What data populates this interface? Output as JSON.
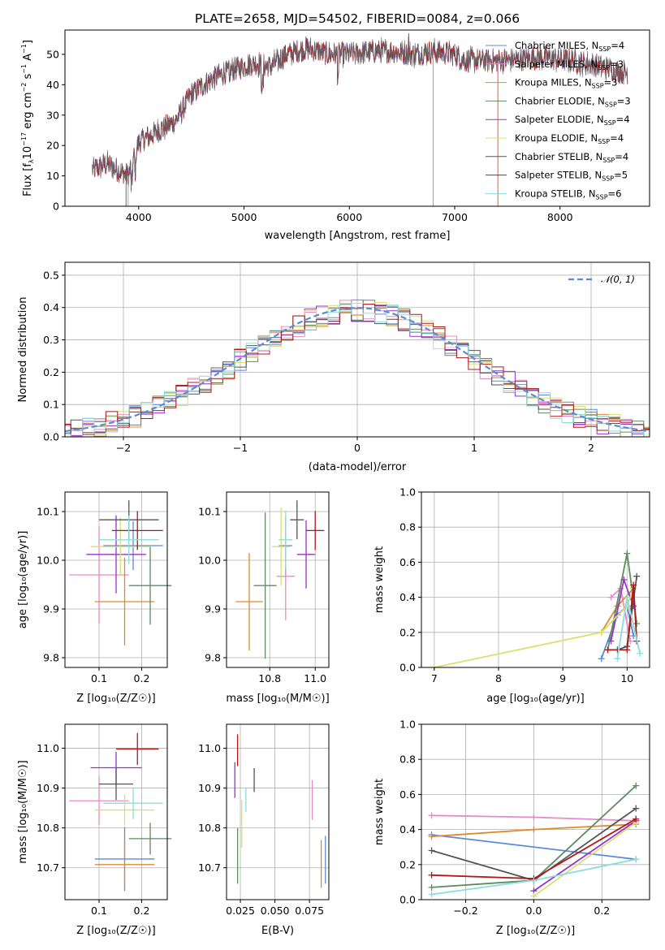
{
  "colors": [
    "#5b8bd4",
    "#e68bc8",
    "#e08a2b",
    "#5d8c5d",
    "#9933cc",
    "#d8e070",
    "#555555",
    "#b01818",
    "#88dde0"
  ],
  "chart_data": [
    {
      "id": "spectrum",
      "type": "line",
      "title": "PLATE=2658, MJD=54502, FIBERID=0084, z=0.066",
      "xlabel": "wavelength [Angstrom, rest frame]",
      "ylabel_parts": [
        "Flux [f",
        "λ",
        "10",
        "−17",
        " erg cm",
        "−2",
        " s",
        "−1",
        " A",
        "−1",
        "]"
      ],
      "xlim": [
        3300,
        8850
      ],
      "ylim": [
        0,
        58
      ],
      "xticks": [
        "4000",
        "5000",
        "6000",
        "7000",
        "8000"
      ],
      "yticks": [
        "0",
        "10",
        "20",
        "30",
        "40",
        "50"
      ],
      "continuum": [
        [
          3560,
          12
        ],
        [
          3700,
          14
        ],
        [
          3900,
          10
        ],
        [
          4000,
          21
        ],
        [
          4200,
          25
        ],
        [
          4350,
          28
        ],
        [
          4500,
          37
        ],
        [
          4700,
          42
        ],
        [
          4900,
          45
        ],
        [
          5100,
          47
        ],
        [
          5250,
          46
        ],
        [
          5400,
          50
        ],
        [
          5600,
          52
        ],
        [
          5800,
          50
        ],
        [
          6000,
          50
        ],
        [
          6200,
          51
        ],
        [
          6400,
          51
        ],
        [
          6600,
          50
        ],
        [
          6800,
          51
        ],
        [
          7000,
          50
        ],
        [
          7100,
          48
        ],
        [
          7300,
          48
        ],
        [
          7500,
          48
        ],
        [
          7800,
          49
        ],
        [
          8100,
          48
        ],
        [
          8400,
          46
        ],
        [
          8600,
          44
        ]
      ],
      "series": [
        {
          "label": "Chabrier MILES, N",
          "sub": "SSP",
          "value": "=4"
        },
        {
          "label": "Salpeter MILES, N",
          "sub": "SSP",
          "value": "=3"
        },
        {
          "label": "Kroupa MILES, N",
          "sub": "SSP",
          "value": "=3"
        },
        {
          "label": "Chabrier ELODIE, N",
          "sub": "SSP",
          "value": "=3"
        },
        {
          "label": "Salpeter ELODIE, N",
          "sub": "SSP",
          "value": "=4"
        },
        {
          "label": "Kroupa ELODIE, N",
          "sub": "SSP",
          "value": "=4"
        },
        {
          "label": "Chabrier STELIB, N",
          "sub": "SSP",
          "value": "=4"
        },
        {
          "label": "Salpeter STELIB, N",
          "sub": "SSP",
          "value": "=5"
        },
        {
          "label": "Kroupa STELIB, N",
          "sub": "SSP",
          "value": "=6"
        }
      ]
    },
    {
      "id": "residuals",
      "type": "histogram",
      "xlabel": "(data-model)/error",
      "ylabel": "Normed distribution",
      "xlim": [
        -2.5,
        2.5
      ],
      "ylim": [
        0,
        0.54
      ],
      "xticks": [
        {
          "v": -2,
          "t": "−2"
        },
        {
          "v": -1,
          "t": "−1"
        },
        {
          "v": 0,
          "t": "0"
        },
        {
          "v": 1,
          "t": "1"
        },
        {
          "v": 2,
          "t": "2"
        }
      ],
      "yticks": [
        {
          "v": 0,
          "t": "0.0"
        },
        {
          "v": 0.1,
          "t": "0.1"
        },
        {
          "v": 0.2,
          "t": "0.2"
        },
        {
          "v": 0.3,
          "t": "0.3"
        },
        {
          "v": 0.4,
          "t": "0.4"
        },
        {
          "v": 0.5,
          "t": "0.5"
        }
      ],
      "bin_width": 0.1,
      "legend": "𝒩(0, 1)",
      "gaussian": {
        "mu": 0,
        "sigma": 1
      }
    },
    {
      "id": "age-vs-Z",
      "type": "errorbar",
      "xlabel": "Z [log₁₀(Z/Z☉)]",
      "ylabel": "age  [log₁₀(age/yr)]",
      "xlim": [
        0.02,
        0.26
      ],
      "ylim": [
        9.78,
        10.14
      ],
      "xticks": [
        {
          "v": 0.1,
          "t": "0.1"
        },
        {
          "v": 0.2,
          "t": "0.2"
        }
      ],
      "yticks": [
        {
          "v": 9.8,
          "t": "9.8"
        },
        {
          "v": 9.9,
          "t": "9.9"
        },
        {
          "v": 10.0,
          "t": "10.0"
        },
        {
          "v": 10.1,
          "t": "10.1"
        }
      ],
      "points": [
        {
          "x": 0.18,
          "y": 10.03,
          "xerr": 0.07,
          "yerr": 0.05,
          "c": 0
        },
        {
          "x": 0.1,
          "y": 9.97,
          "xerr": 0.07,
          "yerr": 0.1,
          "c": 1
        },
        {
          "x": 0.16,
          "y": 9.915,
          "xerr": 0.07,
          "yerr": 0.09,
          "c": 2
        },
        {
          "x": 0.22,
          "y": 9.948,
          "xerr": 0.05,
          "yerr": 0.08,
          "c": 3
        },
        {
          "x": 0.14,
          "y": 10.012,
          "xerr": 0.07,
          "yerr": 0.08,
          "c": 4
        },
        {
          "x": 0.15,
          "y": 10.028,
          "xerr": 0.07,
          "yerr": 0.06,
          "c": 5
        },
        {
          "x": 0.17,
          "y": 10.083,
          "xerr": 0.07,
          "yerr": 0.04,
          "c": 6
        },
        {
          "x": 0.19,
          "y": 10.061,
          "xerr": 0.06,
          "yerr": 0.04,
          "c": 7
        },
        {
          "x": 0.17,
          "y": 10.042,
          "xerr": 0.07,
          "yerr": 0.05,
          "c": 8
        }
      ]
    },
    {
      "id": "age-vs-mass",
      "type": "errorbar",
      "xlabel": "mass [log₁₀(M/M☉)]",
      "ylabel": "",
      "xlim": [
        10.61,
        11.06
      ],
      "ylim": [
        9.78,
        10.14
      ],
      "xticks": [
        {
          "v": 10.8,
          "t": "10.8"
        },
        {
          "v": 11.0,
          "t": "11.0"
        }
      ],
      "yticks": [
        {
          "v": 9.8,
          "t": "9.8"
        },
        {
          "v": 9.9,
          "t": "9.9"
        },
        {
          "v": 10.0,
          "t": "10.0"
        },
        {
          "v": 10.1,
          "t": "10.1"
        }
      ],
      "points": [
        {
          "x": 10.87,
          "y": 10.03,
          "xerr": 0.03,
          "yerr": 0.06,
          "c": 0
        },
        {
          "x": 10.87,
          "y": 9.967,
          "xerr": 0.04,
          "yerr": 0.09,
          "c": 1
        },
        {
          "x": 10.71,
          "y": 9.915,
          "xerr": 0.06,
          "yerr": 0.1,
          "c": 2
        },
        {
          "x": 10.78,
          "y": 9.948,
          "xerr": 0.05,
          "yerr": 0.15,
          "c": 3
        },
        {
          "x": 10.96,
          "y": 10.012,
          "xerr": 0.04,
          "yerr": 0.07,
          "c": 4
        },
        {
          "x": 10.85,
          "y": 10.028,
          "xerr": 0.04,
          "yerr": 0.08,
          "c": 5
        },
        {
          "x": 10.92,
          "y": 10.083,
          "xerr": 0.03,
          "yerr": 0.04,
          "c": 6
        },
        {
          "x": 11.0,
          "y": 10.061,
          "xerr": 0.04,
          "yerr": 0.04,
          "c": 7
        },
        {
          "x": 10.87,
          "y": 10.042,
          "xerr": 0.03,
          "yerr": 0.06,
          "c": 8
        }
      ]
    },
    {
      "id": "massweight-vs-age",
      "type": "line",
      "xlabel": "age  [log₁₀(age/yr)]",
      "ylabel": "mass weight",
      "xlim": [
        6.8,
        10.35
      ],
      "ylim": [
        0,
        1.0
      ],
      "xticks": [
        {
          "v": 7,
          "t": "7"
        },
        {
          "v": 8,
          "t": "8"
        },
        {
          "v": 9,
          "t": "9"
        },
        {
          "v": 10,
          "t": "10"
        }
      ],
      "yticks": [
        {
          "v": 0,
          "t": "0.0"
        },
        {
          "v": 0.2,
          "t": "0.2"
        },
        {
          "v": 0.4,
          "t": "0.4"
        },
        {
          "v": 0.6,
          "t": "0.6"
        },
        {
          "v": 0.8,
          "t": "0.8"
        },
        {
          "v": 1.0,
          "t": "1.0"
        }
      ],
      "series": [
        {
          "c": 0,
          "pts": [
            [
              9.6,
              0.05
            ],
            [
              9.85,
              0.3
            ],
            [
              10.0,
              0.35
            ],
            [
              10.1,
              0.18
            ]
          ]
        },
        {
          "c": 1,
          "pts": [
            [
              9.75,
              0.4
            ],
            [
              9.9,
              0.45
            ],
            [
              10.05,
              0.15
            ]
          ]
        },
        {
          "c": 2,
          "pts": [
            [
              9.6,
              0.2
            ],
            [
              9.85,
              0.35
            ],
            [
              10.1,
              0.45
            ]
          ]
        },
        {
          "c": 3,
          "pts": [
            [
              9.7,
              0.1
            ],
            [
              10.0,
              0.65
            ],
            [
              10.15,
              0.25
            ]
          ]
        },
        {
          "c": 4,
          "pts": [
            [
              9.75,
              0.15
            ],
            [
              9.95,
              0.5
            ],
            [
              10.1,
              0.35
            ]
          ]
        },
        {
          "c": 5,
          "pts": [
            [
              7.0,
              0.0
            ],
            [
              9.6,
              0.2
            ],
            [
              10.0,
              0.35
            ],
            [
              10.1,
              0.45
            ]
          ]
        },
        {
          "c": 6,
          "pts": [
            [
              9.85,
              0.1
            ],
            [
              10.0,
              0.12
            ],
            [
              10.15,
              0.52
            ]
          ]
        },
        {
          "c": 7,
          "pts": [
            [
              9.7,
              0.1
            ],
            [
              10.0,
              0.1
            ],
            [
              10.1,
              0.47
            ],
            [
              10.15,
              0.15
            ]
          ]
        },
        {
          "c": 8,
          "pts": [
            [
              9.85,
              0.05
            ],
            [
              10.0,
              0.4
            ],
            [
              10.2,
              0.08
            ]
          ]
        }
      ]
    },
    {
      "id": "mass-vs-Z",
      "type": "errorbar",
      "xlabel": "Z [log₁₀(Z/Z☉)]",
      "ylabel": "mass [log₁₀(M/M☉)]",
      "xlim": [
        0.02,
        0.26
      ],
      "ylim": [
        10.62,
        11.06
      ],
      "xticks": [
        {
          "v": 0.1,
          "t": "0.1"
        },
        {
          "v": 0.2,
          "t": "0.2"
        }
      ],
      "yticks": [
        {
          "v": 10.7,
          "t": "10.7"
        },
        {
          "v": 10.8,
          "t": "10.8"
        },
        {
          "v": 10.9,
          "t": "10.9"
        },
        {
          "v": 11.0,
          "t": "11.0"
        }
      ],
      "points": [
        {
          "x": 0.16,
          "y": 10.722,
          "xerr": 0.07,
          "yerr": 0.08,
          "c": 0
        },
        {
          "x": 0.1,
          "y": 10.868,
          "xerr": 0.07,
          "yerr": 0.06,
          "c": 1
        },
        {
          "x": 0.16,
          "y": 10.708,
          "xerr": 0.07,
          "yerr": 0.06,
          "c": 2
        },
        {
          "x": 0.22,
          "y": 10.773,
          "xerr": 0.05,
          "yerr": 0.04,
          "c": 3
        },
        {
          "x": 0.14,
          "y": 10.951,
          "xerr": 0.06,
          "yerr": 0.04,
          "c": 4
        },
        {
          "x": 0.16,
          "y": 10.845,
          "xerr": 0.07,
          "yerr": 0.04,
          "c": 5
        },
        {
          "x": 0.14,
          "y": 10.91,
          "xerr": 0.04,
          "yerr": 0.04,
          "c": 6
        },
        {
          "x": 0.19,
          "y": 10.998,
          "xerr": 0.05,
          "yerr": 0.04,
          "c": 7
        },
        {
          "x": 0.18,
          "y": 10.862,
          "xerr": 0.07,
          "yerr": 0.04,
          "c": 8
        }
      ]
    },
    {
      "id": "mass-vs-EBV",
      "type": "errorbar",
      "xlabel": "E(B-V)",
      "ylabel": "",
      "xlim": [
        0.015,
        0.089
      ],
      "ylim": [
        10.62,
        11.06
      ],
      "xticks": [
        {
          "v": 0.025,
          "t": "0.025"
        },
        {
          "v": 0.05,
          "t": "0.050"
        },
        {
          "v": 0.075,
          "t": "0.075"
        }
      ],
      "yticks": [
        {
          "v": 10.7,
          "t": "10.7"
        },
        {
          "v": 10.8,
          "t": "10.8"
        },
        {
          "v": 10.9,
          "t": "10.9"
        },
        {
          "v": 11.0,
          "t": "11.0"
        }
      ],
      "points": [
        {
          "x": 0.0865,
          "y": 10.72,
          "xerr": 0,
          "yerr": 0.06,
          "c": 0
        },
        {
          "x": 0.077,
          "y": 10.87,
          "xerr": 0,
          "yerr": 0.05,
          "c": 1
        },
        {
          "x": 0.0835,
          "y": 10.71,
          "xerr": 0,
          "yerr": 0.06,
          "c": 2
        },
        {
          "x": 0.023,
          "y": 10.73,
          "xerr": 0,
          "yerr": 0.07,
          "c": 3
        },
        {
          "x": 0.021,
          "y": 10.92,
          "xerr": 0,
          "yerr": 0.045,
          "c": 4
        },
        {
          "x": 0.026,
          "y": 10.81,
          "xerr": 0,
          "yerr": 0.06,
          "c": 5
        },
        {
          "x": 0.035,
          "y": 10.92,
          "xerr": 0,
          "yerr": 0.03,
          "c": 6
        },
        {
          "x": 0.023,
          "y": 10.995,
          "xerr": 0,
          "yerr": 0.04,
          "c": 7
        },
        {
          "x": 0.029,
          "y": 10.87,
          "xerr": 0,
          "yerr": 0.03,
          "c": 8
        }
      ]
    },
    {
      "id": "massweight-vs-Z",
      "type": "line",
      "xlabel": "Z [log₁₀(Z/Z☉)]",
      "ylabel": "mass weight",
      "xlim": [
        -0.33,
        0.34
      ],
      "ylim": [
        0,
        1.0
      ],
      "xticks": [
        {
          "v": -0.2,
          "t": "−0.2"
        },
        {
          "v": 0,
          "t": "0.0"
        },
        {
          "v": 0.2,
          "t": "0.2"
        }
      ],
      "yticks": [
        {
          "v": 0,
          "t": "0.0"
        },
        {
          "v": 0.2,
          "t": "0.2"
        },
        {
          "v": 0.4,
          "t": "0.4"
        },
        {
          "v": 0.6,
          "t": "0.6"
        },
        {
          "v": 0.8,
          "t": "0.8"
        },
        {
          "v": 1.0,
          "t": "1.0"
        }
      ],
      "series": [
        {
          "c": 0,
          "pts": [
            [
              -0.3,
              0.37
            ],
            [
              0.3,
              0.23
            ]
          ]
        },
        {
          "c": 1,
          "pts": [
            [
              -0.3,
              0.48
            ],
            [
              0.0,
              0.47
            ],
            [
              0.3,
              0.45
            ]
          ]
        },
        {
          "c": 2,
          "pts": [
            [
              -0.3,
              0.36
            ],
            [
              0.0,
              0.4
            ],
            [
              0.3,
              0.43
            ]
          ]
        },
        {
          "c": 3,
          "pts": [
            [
              -0.3,
              0.07
            ],
            [
              0.0,
              0.11
            ],
            [
              0.3,
              0.65
            ]
          ]
        },
        {
          "c": 4,
          "pts": [
            [
              0.0,
              0.05
            ],
            [
              0.3,
              0.45
            ]
          ]
        },
        {
          "c": 5,
          "pts": [
            [
              0.0,
              0.02
            ],
            [
              0.3,
              0.44
            ]
          ]
        },
        {
          "c": 6,
          "pts": [
            [
              -0.3,
              0.28
            ],
            [
              0.0,
              0.11
            ],
            [
              0.3,
              0.52
            ]
          ]
        },
        {
          "c": 7,
          "pts": [
            [
              -0.3,
              0.14
            ],
            [
              0.0,
              0.12
            ],
            [
              0.3,
              0.46
            ]
          ]
        },
        {
          "c": 8,
          "pts": [
            [
              -0.3,
              0.03
            ],
            [
              0.0,
              0.11
            ],
            [
              0.3,
              0.23
            ]
          ]
        }
      ]
    }
  ]
}
